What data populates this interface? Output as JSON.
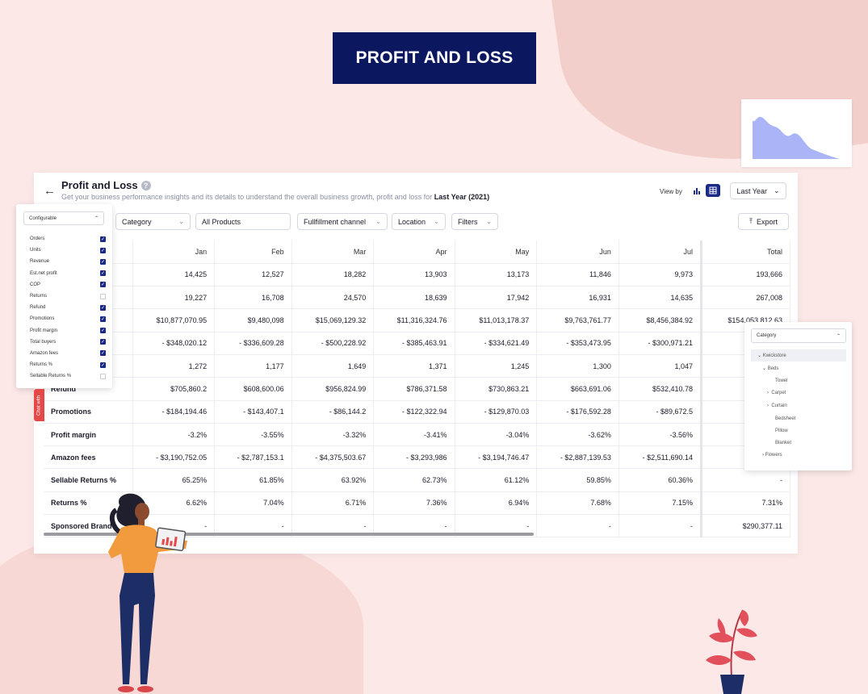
{
  "hero": {
    "title": "PROFIT AND LOSS"
  },
  "header": {
    "title": "Profit and Loss",
    "subtitle": "Get your business performance insights and its details to understand the overall business growth, profit and loss for",
    "period": "Last Year (2021)",
    "view_by_label": "View by",
    "period_select": "Last Year"
  },
  "filters": {
    "category": "Category",
    "products": "All Products",
    "fulfillment": "Fullfillment channel",
    "location": "Location",
    "more": "Filters",
    "export": "Export"
  },
  "table": {
    "columns": [
      "Jan",
      "Feb",
      "Mar",
      "Apr",
      "May",
      "Jun",
      "Jul",
      "Total"
    ],
    "rows": [
      {
        "label": "",
        "values": [
          "14,425",
          "12,527",
          "18,282",
          "13,903",
          "13,173",
          "11,846",
          "9,973",
          "193,666"
        ]
      },
      {
        "label": "",
        "values": [
          "19,227",
          "16,708",
          "24,570",
          "18,639",
          "17,942",
          "16,931",
          "14,635",
          "267,008"
        ]
      },
      {
        "label": "",
        "values": [
          "$10,877,070.95",
          "$9,480,098",
          "$15,069,129.32",
          "$11,316,324.76",
          "$11,013,178.37",
          "$9,763,761.77",
          "$8,456,384.92",
          "$154,053,812.63"
        ]
      },
      {
        "label": "",
        "values": [
          "- $348,020.12",
          "- $336,609.28",
          "- $500,228.92",
          "- $385,463.91",
          "- $334,621.49",
          "- $353,473.95",
          "- $300,971.21",
          "- $5,4"
        ]
      },
      {
        "label": "",
        "values": [
          "1,272",
          "1,177",
          "1,649",
          "1,371",
          "1,245",
          "1,300",
          "1,047",
          ""
        ]
      },
      {
        "label": "Refund",
        "values": [
          "$705,860.2",
          "$608,600.06",
          "$956,824.99",
          "$786,371.58",
          "$730,863.21",
          "$663,691.06",
          "$532,410.78",
          "$10,7"
        ]
      },
      {
        "label": "Promotions",
        "values": [
          "- $184,194.46",
          "- $143,407.1",
          "- $86,144.2",
          "- $122,322.94",
          "- $129,870.03",
          "- $176,592.28",
          "- $89,672.5",
          "- $3,0"
        ]
      },
      {
        "label": "Profit margin",
        "values": [
          "-3.2%",
          "-3.55%",
          "-3.32%",
          "-3.41%",
          "-3.04%",
          "-3.62%",
          "-3.56%",
          ""
        ]
      },
      {
        "label": "Amazon fees",
        "values": [
          "- $3,190,752.05",
          "- $2,787,153.1",
          "- $4,375,503.67",
          "- $3,293,986",
          "- $3,194,746.47",
          "- $2,887,139.53",
          "- $2,511,690.14",
          "- $45,5"
        ]
      },
      {
        "label": "Sellable Returns %",
        "values": [
          "65.25%",
          "61.85%",
          "63.92%",
          "62.73%",
          "61.12%",
          "59.85%",
          "60.36%",
          "-"
        ]
      },
      {
        "label": "Returns %",
        "values": [
          "6.62%",
          "7.04%",
          "6.71%",
          "7.36%",
          "6.94%",
          "7.68%",
          "7.15%",
          "7.31%"
        ]
      },
      {
        "label": "Sponsored Brand",
        "values": [
          "-",
          "-",
          "-",
          "-",
          "-",
          "-",
          "-",
          "$290,377.11"
        ]
      }
    ]
  },
  "configurable": {
    "title": "Configurable",
    "items": [
      {
        "label": "Orders",
        "checked": true
      },
      {
        "label": "Units",
        "checked": true
      },
      {
        "label": "Revenue",
        "checked": true
      },
      {
        "label": "Est.net profit",
        "checked": true
      },
      {
        "label": "COP",
        "checked": true
      },
      {
        "label": "Returns",
        "checked": false
      },
      {
        "label": "Refund",
        "checked": true
      },
      {
        "label": "Promotions",
        "checked": true
      },
      {
        "label": "Profit margin",
        "checked": true
      },
      {
        "label": "Total buyers",
        "checked": true
      },
      {
        "label": "Amazon fees",
        "checked": true
      },
      {
        "label": "Returns %",
        "checked": true
      },
      {
        "label": "Sellable Returns %",
        "checked": false
      }
    ]
  },
  "chat": {
    "label": "Chat with"
  },
  "category_tree": {
    "title": "Category",
    "nodes": [
      "Kwickstore",
      "Beds",
      "Towel",
      "Carpet",
      "Curtain",
      "Bedsheet",
      "Pillow",
      "Blanket",
      "Flowers"
    ]
  },
  "colors": {
    "navy": "#0b1860",
    "accent": "#1b2a87",
    "background": "#fce9e7",
    "chat_red": "#e54848"
  }
}
